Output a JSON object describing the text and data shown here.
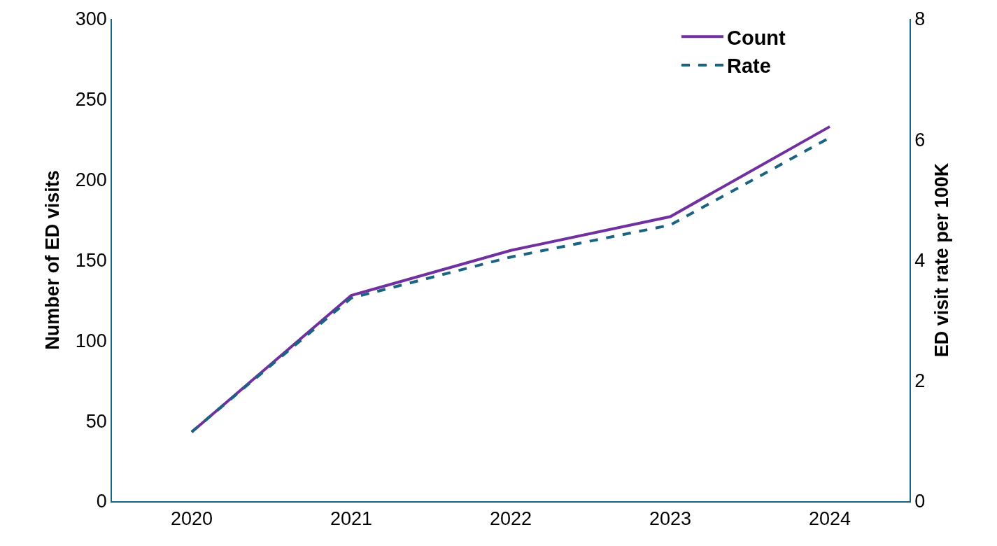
{
  "chart_data": {
    "type": "line",
    "categories": [
      "2020",
      "2021",
      "2022",
      "2023",
      "2024"
    ],
    "ylabel": "Number of ED visits",
    "y2label": "ED visit rate per 100K",
    "ylim": [
      0,
      300
    ],
    "yticks": [
      0,
      50,
      100,
      150,
      200,
      250,
      300
    ],
    "y2lim": [
      0,
      8
    ],
    "y2ticks": [
      0,
      2,
      4,
      6,
      8
    ],
    "series": [
      {
        "name": "Count",
        "color": "#7030a0",
        "values": [
          43,
          128,
          156,
          177,
          233
        ],
        "line_style": "solid"
      },
      {
        "name": "Rate",
        "color": "#1a6482",
        "values": [
          1.15,
          3.37,
          4.05,
          4.58,
          6.03
        ],
        "axis": "y2",
        "line_style": "dashed"
      }
    ],
    "legend": "top right",
    "marker": "none"
  }
}
